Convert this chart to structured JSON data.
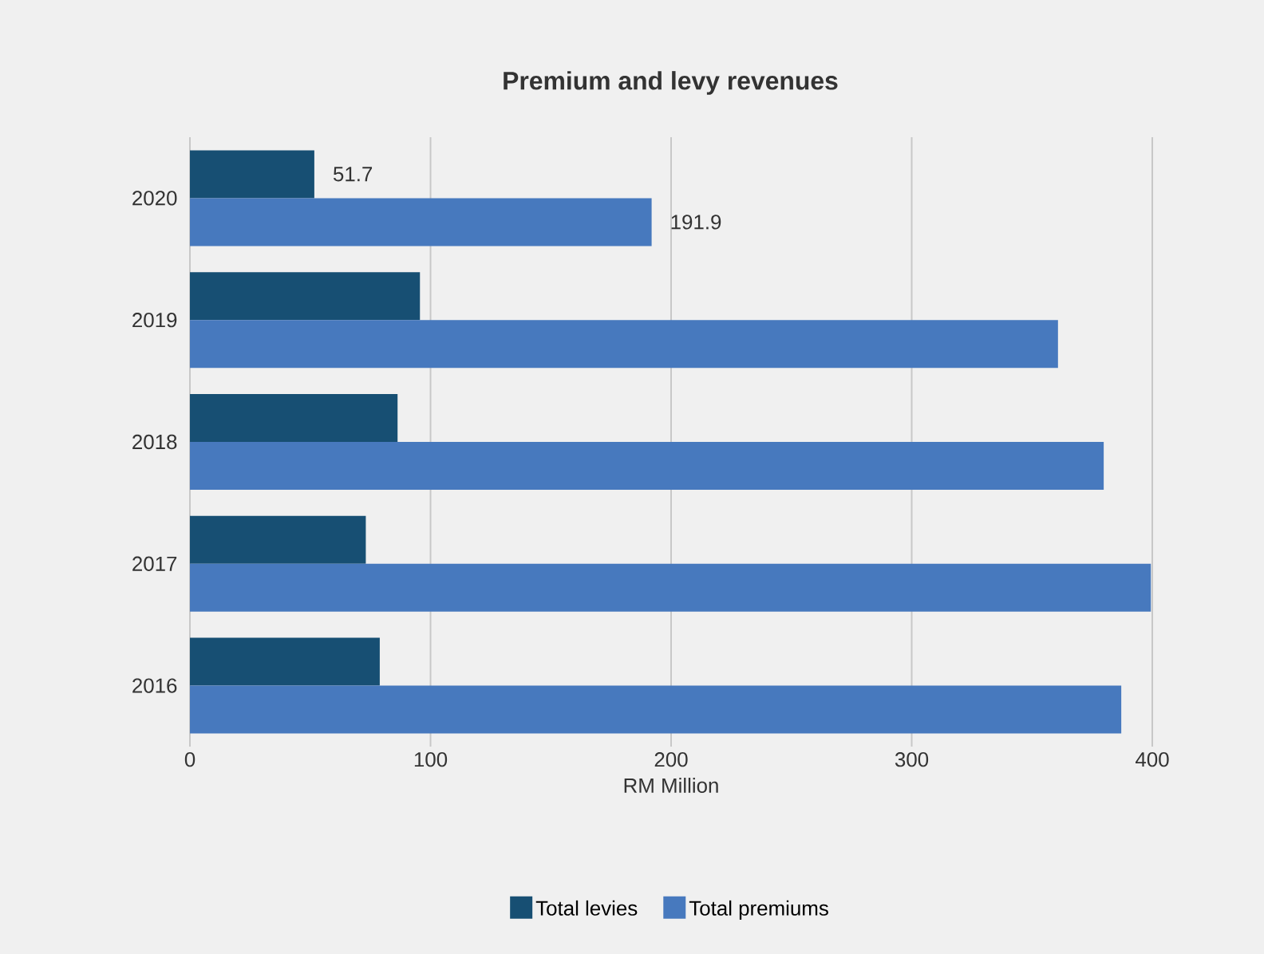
{
  "chart_data": {
    "type": "bar",
    "orientation": "horizontal",
    "title": "Premium and levy revenues",
    "xlabel": "RM Million",
    "categories": [
      "2020",
      "2019",
      "2018",
      "2017",
      "2016"
    ],
    "series": [
      {
        "name": "Total levies",
        "color": "#174f73",
        "values": [
          51.7,
          95.6,
          86.3,
          73.1,
          78.9
        ],
        "value_labels": [
          "51.7",
          null,
          null,
          null,
          null
        ]
      },
      {
        "name": "Total premiums",
        "color": "#4779be",
        "values": [
          191.9,
          360.8,
          379.8,
          399.4,
          387.1
        ],
        "value_labels": [
          "191.9",
          null,
          null,
          null,
          null
        ]
      }
    ],
    "xlim": [
      0,
      400
    ],
    "xticks": [
      0,
      100,
      200,
      300,
      400
    ],
    "grid": "x",
    "legend": "bottom"
  }
}
